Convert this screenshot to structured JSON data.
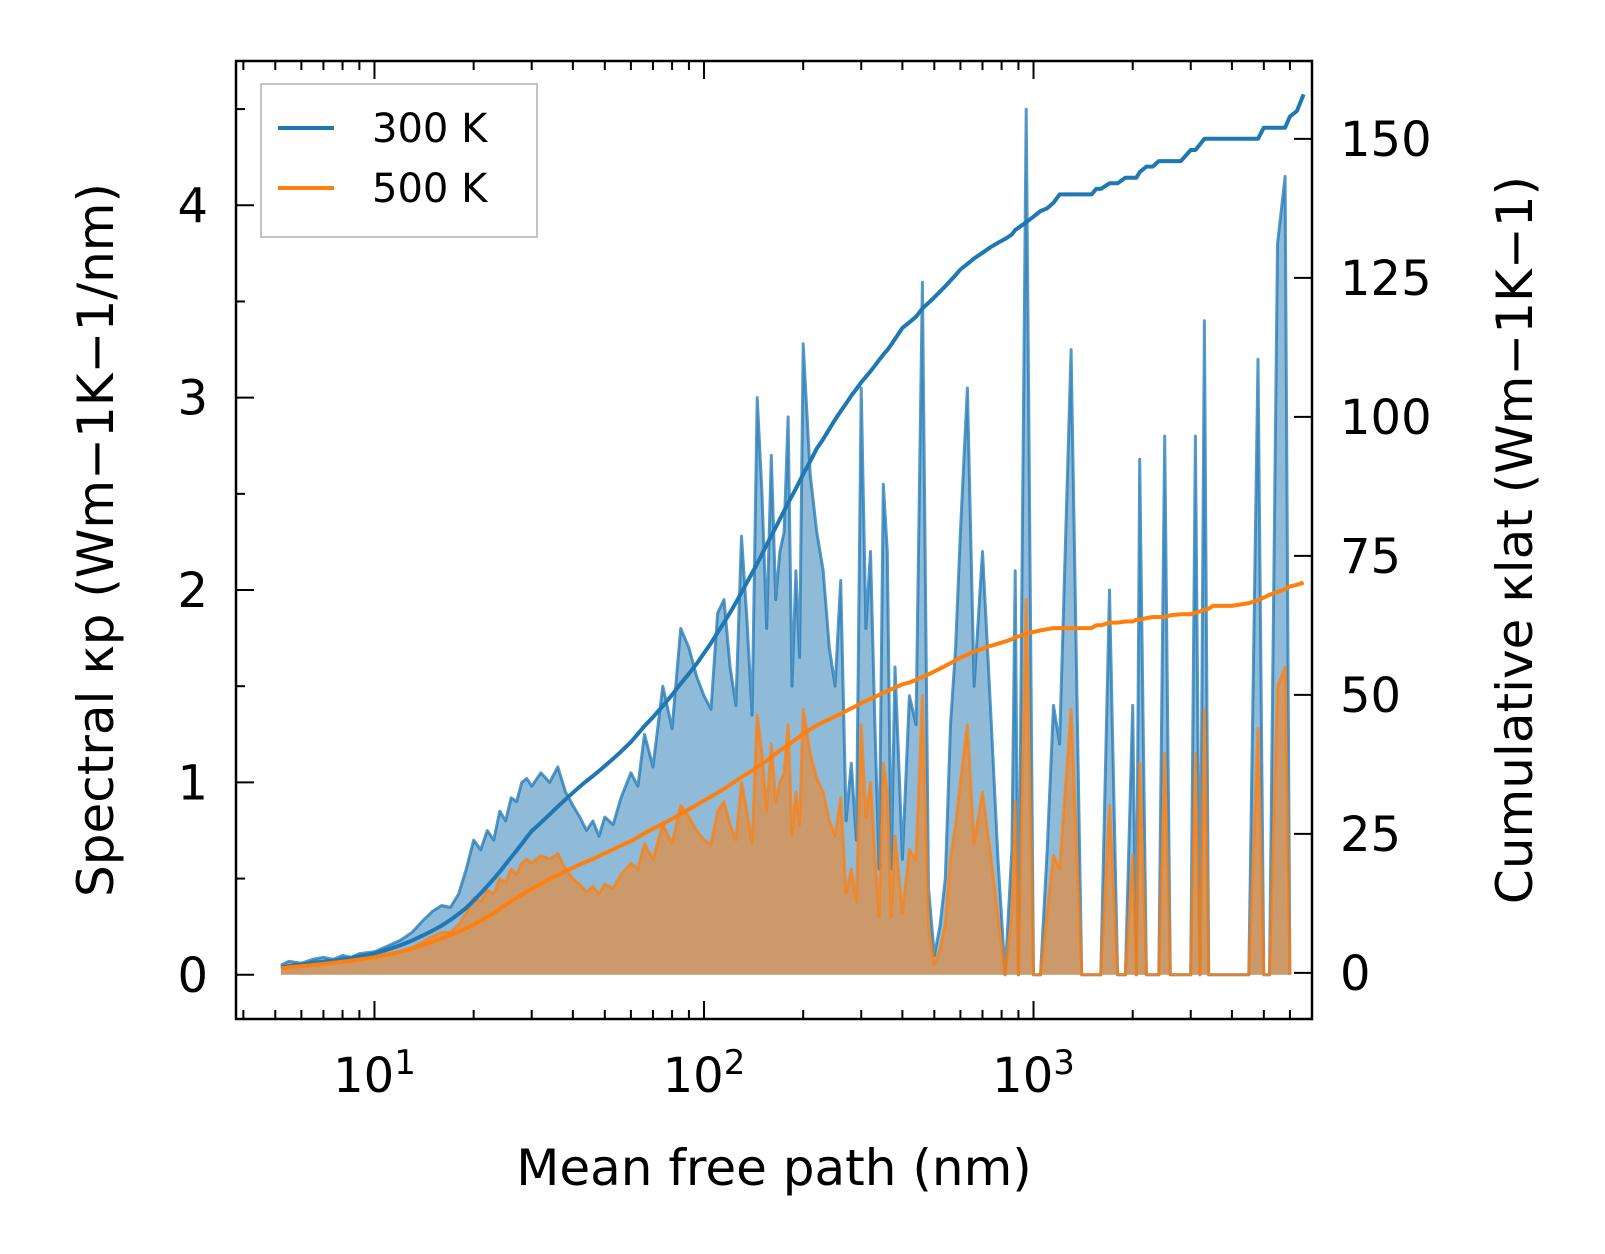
{
  "chart_data": {
    "type": "area+line",
    "title": "",
    "xlabel": "Mean free path (nm)",
    "ylabel_left": "Spectral κp (Wm−1K−1/nm)",
    "ylabel_right": "Cumulative κlat (Wm−1K−1)",
    "xscale": "log",
    "xlim": [
      3.8,
      7000
    ],
    "ylim_left": [
      -0.23,
      4.75
    ],
    "ylim_right": [
      -8.3,
      164
    ],
    "x_ticks": [
      {
        "value": 10,
        "base": "10",
        "exp": "1"
      },
      {
        "value": 100,
        "base": "10",
        "exp": "2"
      },
      {
        "value": 1000,
        "base": "10",
        "exp": "3"
      }
    ],
    "y_ticks_left": [
      0,
      1,
      2,
      3,
      4
    ],
    "y_ticks_right": [
      0,
      25,
      50,
      75,
      100,
      125,
      150
    ],
    "legend": {
      "position": "top-left",
      "entries": [
        {
          "label": "300 K",
          "color": "#1f77b4"
        },
        {
          "label": "500 K",
          "color": "#ff7f0e"
        }
      ]
    },
    "spectral_x": [
      5.2,
      5.5,
      6.0,
      6.5,
      7.0,
      7.5,
      8.0,
      8.5,
      9.0,
      10.0,
      11.0,
      12.0,
      13.0,
      14.0,
      15.0,
      16.0,
      17.0,
      18.0,
      19.0,
      20.0,
      21.0,
      22.0,
      23.0,
      24.0,
      25.0,
      26.0,
      27.0,
      28.0,
      29.0,
      30.0,
      32.0,
      34.0,
      36.0,
      38.0,
      40.0,
      42.0,
      44.0,
      46.0,
      48.0,
      50.0,
      53.0,
      56.0,
      60.0,
      63.0,
      66.0,
      70.0,
      75.0,
      80.0,
      85.0,
      90.0,
      95.0,
      100.0,
      105.0,
      110.0,
      115.0,
      120.0,
      125.0,
      130.0,
      135.0,
      140.0,
      145.0,
      150.0,
      155.0,
      160.0,
      165.0,
      170.0,
      175.0,
      180.0,
      185.0,
      190.0,
      195.0,
      200.0,
      210.0,
      220.0,
      230.0,
      240.0,
      250.0,
      260.0,
      270.0,
      280.0,
      290.0,
      300.0,
      310.0,
      320.0,
      330.0,
      340.0,
      350.0,
      360.0,
      370.0,
      380.0,
      390.0,
      400.0,
      420.0,
      440.0,
      460.0,
      480.0,
      500.0,
      520.0,
      540.0,
      560.0,
      580.0,
      600.0,
      630.0,
      660.0,
      700.0,
      740.0,
      780.0,
      820.0,
      860.0,
      880.0,
      900.0,
      950.0,
      1000.0,
      1050.0,
      1100.0,
      1150.0,
      1200.0,
      1300.0,
      1400.0,
      1500.0,
      1550.0,
      1600.0,
      1700.0,
      1800.0,
      1900.0,
      2000.0,
      2050.0,
      2100.0,
      2200.0,
      2300.0,
      2400.0,
      2500.0,
      2600.0,
      2800.0,
      3000.0,
      3100.0,
      3200.0,
      3300.0,
      3400.0,
      3500.0,
      3600.0,
      3700.0,
      4000.0,
      4500.0,
      4800.0,
      5000.0,
      5200.0,
      5500.0,
      5800.0,
      6000.0,
      6300.0,
      6600.0
    ],
    "series": [
      {
        "name": "300 K",
        "color": "#1f77b4",
        "spectral": [
          0.05,
          0.07,
          0.06,
          0.08,
          0.09,
          0.08,
          0.1,
          0.09,
          0.11,
          0.12,
          0.15,
          0.18,
          0.22,
          0.28,
          0.33,
          0.36,
          0.35,
          0.42,
          0.55,
          0.7,
          0.65,
          0.75,
          0.7,
          0.85,
          0.8,
          0.92,
          0.9,
          1.0,
          1.02,
          0.98,
          1.05,
          1.0,
          1.08,
          0.95,
          0.88,
          0.82,
          0.75,
          0.8,
          0.72,
          0.82,
          0.78,
          0.92,
          1.05,
          0.98,
          1.25,
          1.08,
          1.5,
          1.28,
          1.8,
          1.7,
          1.55,
          1.45,
          1.38,
          1.88,
          1.95,
          1.6,
          1.4,
          2.28,
          1.85,
          1.35,
          3.0,
          2.5,
          1.8,
          2.7,
          1.95,
          2.2,
          2.3,
          2.9,
          1.5,
          2.1,
          1.65,
          3.28,
          2.6,
          2.3,
          2.1,
          1.7,
          1.5,
          2.05,
          0.8,
          1.1,
          0.7,
          3.05,
          1.8,
          2.2,
          1.3,
          0.55,
          2.55,
          2.2,
          0.55,
          1.6,
          1.1,
          0.6,
          1.45,
          1.3,
          3.6,
          0.45,
          0.1,
          0.25,
          0.5,
          1.3,
          1.7,
          2.3,
          3.05,
          1.5,
          2.2,
          1.4,
          0.6,
          0.0,
          0.65,
          2.1,
          0.0,
          4.5,
          0.0,
          0.0,
          0.65,
          1.4,
          1.2,
          3.25,
          0.0,
          0.0,
          0.0,
          0.0,
          2.0,
          0.0,
          0.0,
          1.4,
          0.0,
          2.68,
          0.0,
          0.0,
          0.0,
          2.8,
          0.0,
          0.0,
          0.0,
          2.8,
          0.0,
          3.4,
          0.0,
          0.0,
          0.0,
          0.0,
          0.0,
          0.0,
          3.2,
          0.0,
          0.0,
          3.8,
          4.15,
          0.0
        ],
        "cumulative": [
          1.0,
          1.2,
          1.5,
          1.8,
          2.0,
          2.2,
          2.4,
          2.7,
          3.0,
          3.5,
          4.2,
          5.0,
          5.8,
          6.7,
          7.6,
          8.5,
          9.5,
          10.6,
          11.7,
          13.0,
          14.3,
          15.6,
          16.9,
          18.2,
          19.5,
          20.8,
          22.0,
          23.2,
          24.4,
          25.5,
          27.0,
          28.5,
          29.9,
          31.2,
          32.4,
          33.5,
          34.5,
          35.4,
          36.3,
          37.2,
          38.5,
          39.8,
          41.5,
          43.0,
          44.4,
          46.0,
          48.0,
          50.0,
          52.0,
          53.8,
          55.6,
          57.5,
          59.3,
          61.2,
          63.0,
          64.8,
          66.6,
          68.4,
          70.2,
          71.9,
          73.6,
          75.3,
          77.0,
          78.6,
          80.1,
          81.6,
          83.1,
          84.5,
          85.8,
          87.1,
          88.4,
          89.7,
          92.0,
          94.3,
          96.0,
          97.8,
          99.5,
          101.0,
          102.4,
          103.8,
          105.0,
          106.2,
          107.2,
          108.2,
          109.2,
          110.2,
          111.2,
          112.0,
          113.0,
          114.0,
          115.0,
          116.0,
          117.0,
          118.0,
          119.5,
          120.5,
          121.5,
          122.5,
          123.5,
          124.5,
          125.5,
          126.5,
          127.5,
          128.5,
          129.5,
          130.5,
          131.3,
          132.0,
          132.8,
          133.6,
          134.0,
          135.0,
          136.0,
          137.0,
          137.5,
          138.5,
          140.0,
          140.0,
          140.0,
          140.0,
          141.0,
          141.0,
          142.0,
          142.0,
          143.0,
          143.0,
          143.0,
          144.0,
          145.0,
          145.0,
          146.0,
          146.0,
          146.0,
          146.0,
          148.0,
          148.0,
          149.0,
          150.0,
          150.0,
          150.0,
          150.0,
          150.0,
          150.0,
          150.0,
          150.0,
          152.0,
          152.0,
          152.0,
          152.0,
          154.0,
          155.0,
          158.0,
          158.0
        ]
      },
      {
        "name": "500 K",
        "color": "#ff7f0e",
        "spectral": [
          0.04,
          0.05,
          0.05,
          0.06,
          0.06,
          0.06,
          0.07,
          0.07,
          0.08,
          0.09,
          0.11,
          0.12,
          0.14,
          0.17,
          0.2,
          0.22,
          0.22,
          0.26,
          0.32,
          0.4,
          0.38,
          0.44,
          0.42,
          0.5,
          0.48,
          0.55,
          0.52,
          0.58,
          0.6,
          0.58,
          0.62,
          0.6,
          0.63,
          0.55,
          0.5,
          0.47,
          0.43,
          0.46,
          0.42,
          0.47,
          0.45,
          0.52,
          0.58,
          0.55,
          0.68,
          0.6,
          0.78,
          0.68,
          0.88,
          0.82,
          0.75,
          0.7,
          0.68,
          0.85,
          0.9,
          0.78,
          0.7,
          1.0,
          0.85,
          0.68,
          1.35,
          1.15,
          0.85,
          1.2,
          0.9,
          1.0,
          1.05,
          1.3,
          0.72,
          0.95,
          0.78,
          1.38,
          1.15,
          1.02,
          0.95,
          0.8,
          0.72,
          0.92,
          0.42,
          0.55,
          0.38,
          1.3,
          0.82,
          1.0,
          0.62,
          0.3,
          1.1,
          0.95,
          0.3,
          0.72,
          0.52,
          0.32,
          0.65,
          0.6,
          1.45,
          0.25,
          0.05,
          0.13,
          0.26,
          0.6,
          0.78,
          1.0,
          1.3,
          0.68,
          0.95,
          0.63,
          0.3,
          0.0,
          0.32,
          0.9,
          0.0,
          1.95,
          0.0,
          0.0,
          0.32,
          0.62,
          0.55,
          1.38,
          0.0,
          0.0,
          0.0,
          0.0,
          0.88,
          0.0,
          0.0,
          0.62,
          0.0,
          1.1,
          0.0,
          0.0,
          0.0,
          1.15,
          0.0,
          0.0,
          0.0,
          1.15,
          0.0,
          1.38,
          0.0,
          0.0,
          0.0,
          0.0,
          0.0,
          0.0,
          1.28,
          0.0,
          0.0,
          1.5,
          1.6,
          0.0
        ],
        "cumulative": [
          0.8,
          1.0,
          1.2,
          1.4,
          1.6,
          1.8,
          2.0,
          2.2,
          2.4,
          2.8,
          3.3,
          3.8,
          4.4,
          5.0,
          5.6,
          6.2,
          6.8,
          7.4,
          8.0,
          8.7,
          9.4,
          10.1,
          10.8,
          11.5,
          12.2,
          12.9,
          13.5,
          14.1,
          14.6,
          15.1,
          16.0,
          16.9,
          17.6,
          18.3,
          18.9,
          19.5,
          20.0,
          20.5,
          21.0,
          21.5,
          22.2,
          22.9,
          23.7,
          24.4,
          25.1,
          25.9,
          26.8,
          27.7,
          28.6,
          29.4,
          30.2,
          31.0,
          31.7,
          32.4,
          33.1,
          33.8,
          34.5,
          35.2,
          35.8,
          36.4,
          37.0,
          37.6,
          38.2,
          38.8,
          39.4,
          40.0,
          40.5,
          41.0,
          41.5,
          42.0,
          42.5,
          43.0,
          43.8,
          44.5,
          45.1,
          45.6,
          46.1,
          46.6,
          47.1,
          47.6,
          48.0,
          48.5,
          48.9,
          49.3,
          49.6,
          50.0,
          50.4,
          50.7,
          51.0,
          51.3,
          51.6,
          51.9,
          52.2,
          52.7,
          53.2,
          53.7,
          54.2,
          54.7,
          55.2,
          55.7,
          56.2,
          56.7,
          57.2,
          57.8,
          58.3,
          58.8,
          59.2,
          59.6,
          60.0,
          60.4,
          60.5,
          61.0,
          61.3,
          61.6,
          61.8,
          62.0,
          62.0,
          62.0,
          62.0,
          62.0,
          62.5,
          62.5,
          63.0,
          63.0,
          63.2,
          63.2,
          63.5,
          63.5,
          63.8,
          64.0,
          64.0,
          64.0,
          64.3,
          64.5,
          64.5,
          64.8,
          65.0,
          65.3,
          65.5,
          66.0,
          66.0,
          66.0,
          66.0,
          66.5,
          67.0,
          67.5,
          68.0,
          68.5,
          69.0,
          69.5,
          69.8,
          70.2,
          70.2
        ]
      }
    ]
  }
}
